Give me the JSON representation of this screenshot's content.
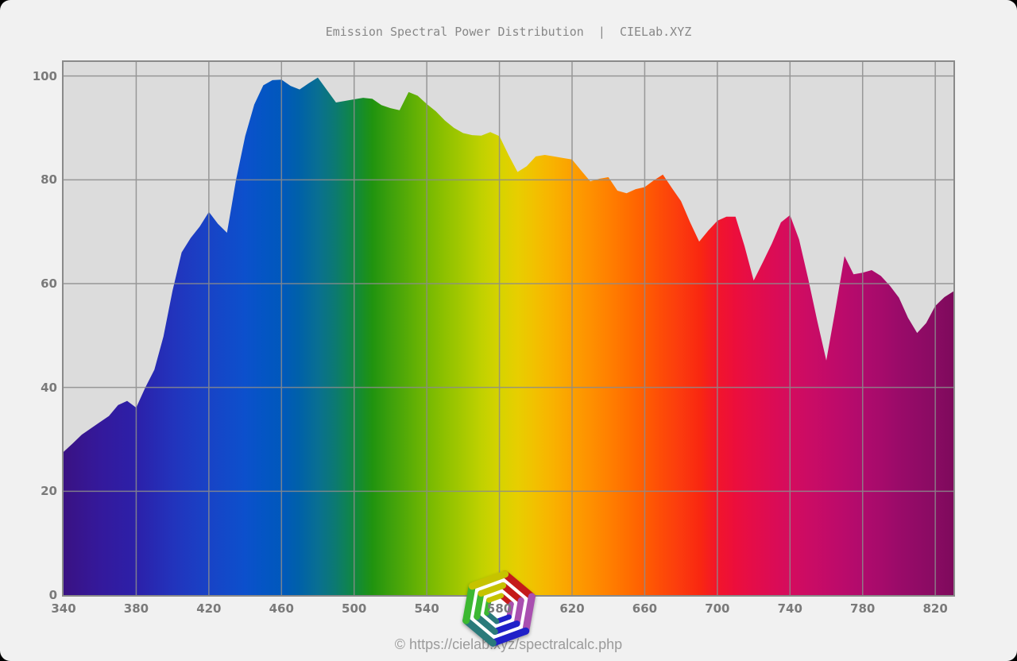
{
  "header": {
    "title": "Emission Spectral Power Distribution  |  CIELab.XYZ",
    "color": "#878787"
  },
  "footer": {
    "text": "© https://cielab.xyz/spectralcalc.php",
    "color": "#9b9b9b"
  },
  "window": {
    "background": "#f1f1f1",
    "corner_background": "#000000"
  },
  "chart_data": {
    "type": "area",
    "title": "Emission Spectral Power Distribution | CIELab.XYZ",
    "xlabel": "",
    "ylabel": "",
    "xlim": [
      340,
      830
    ],
    "ylim": [
      0,
      102.7
    ],
    "x_ticks": [
      340,
      380,
      420,
      460,
      500,
      540,
      580,
      620,
      660,
      700,
      740,
      780,
      820
    ],
    "y_ticks": [
      0,
      20,
      40,
      60,
      80,
      100
    ],
    "grid": true,
    "grid_color": "#8c8c8c",
    "plot_background": "#dcdcdc",
    "axis_border_color": "#8a8a8a",
    "tick_label_color": "#7a7a7a",
    "legend": "none",
    "series": [
      {
        "name": "emission-spectral-power-distribution",
        "x": [
          340,
          345,
          350,
          355,
          360,
          365,
          370,
          375,
          380,
          385,
          390,
          395,
          400,
          405,
          410,
          415,
          420,
          425,
          430,
          435,
          440,
          445,
          450,
          455,
          460,
          465,
          470,
          475,
          480,
          485,
          490,
          495,
          500,
          505,
          510,
          515,
          520,
          525,
          530,
          535,
          540,
          545,
          550,
          555,
          560,
          565,
          570,
          575,
          580,
          585,
          590,
          595,
          600,
          605,
          610,
          615,
          620,
          625,
          630,
          635,
          640,
          645,
          650,
          655,
          660,
          665,
          670,
          675,
          680,
          685,
          690,
          695,
          700,
          705,
          710,
          715,
          720,
          725,
          730,
          735,
          740,
          745,
          750,
          755,
          760,
          765,
          770,
          775,
          780,
          785,
          790,
          795,
          800,
          805,
          810,
          815,
          820,
          825,
          830
        ],
        "values": [
          27.6,
          29.2,
          30.9,
          32.1,
          33.3,
          34.5,
          36.6,
          37.4,
          36.1,
          40.0,
          43.4,
          49.8,
          58.6,
          66.0,
          68.8,
          71.0,
          73.8,
          71.5,
          69.8,
          80.0,
          88.4,
          94.5,
          98.2,
          99.2,
          99.3,
          98.1,
          97.4,
          98.6,
          99.7,
          97.3,
          94.9,
          95.2,
          95.5,
          95.8,
          95.6,
          94.4,
          93.8,
          93.4,
          96.9,
          96.2,
          94.6,
          93.2,
          91.4,
          90.0,
          89.0,
          88.6,
          88.5,
          89.2,
          88.4,
          84.8,
          81.5,
          82.6,
          84.5,
          84.8,
          84.5,
          84.2,
          83.9,
          81.8,
          79.7,
          80.2,
          80.5,
          77.9,
          77.4,
          78.2,
          78.6,
          79.9,
          81.0,
          78.4,
          75.9,
          71.8,
          68.1,
          70.2,
          72.1,
          72.9,
          72.9,
          67.2,
          60.6,
          64.1,
          67.7,
          71.8,
          73.2,
          68.5,
          61.0,
          52.8,
          45.2,
          55.0,
          65.3,
          61.8,
          62.1,
          62.6,
          61.5,
          59.6,
          57.3,
          53.4,
          50.5,
          52.4,
          55.7,
          57.4,
          58.5
        ]
      }
    ],
    "spectrum_gradient_stops": [
      [
        340,
        "#3A1283"
      ],
      [
        360,
        "#34199B"
      ],
      [
        380,
        "#2C20A9"
      ],
      [
        400,
        "#2233BC"
      ],
      [
        420,
        "#1843C6"
      ],
      [
        440,
        "#0C50CC"
      ],
      [
        450,
        "#0455C4"
      ],
      [
        460,
        "#0058BC"
      ],
      [
        470,
        "#0061A8"
      ],
      [
        480,
        "#096F92"
      ],
      [
        490,
        "#0C7A70"
      ],
      [
        500,
        "#108840"
      ],
      [
        510,
        "#20930F"
      ],
      [
        520,
        "#3DA00C"
      ],
      [
        530,
        "#58AC06"
      ],
      [
        540,
        "#74B802"
      ],
      [
        550,
        "#8EC100"
      ],
      [
        560,
        "#A6C900"
      ],
      [
        570,
        "#C0D100"
      ],
      [
        580,
        "#D6D300"
      ],
      [
        590,
        "#E7CE00"
      ],
      [
        600,
        "#F2C000"
      ],
      [
        610,
        "#F9B100"
      ],
      [
        620,
        "#FCA000"
      ],
      [
        630,
        "#FE9000"
      ],
      [
        640,
        "#FF8000"
      ],
      [
        650,
        "#FF6F00"
      ],
      [
        660,
        "#FF5D02"
      ],
      [
        670,
        "#FD4A08"
      ],
      [
        680,
        "#FB3A0E"
      ],
      [
        690,
        "#F92810"
      ],
      [
        700,
        "#F2152B"
      ],
      [
        710,
        "#EC0E3C"
      ],
      [
        720,
        "#E40D49"
      ],
      [
        730,
        "#DC0C54"
      ],
      [
        740,
        "#D40C5E"
      ],
      [
        750,
        "#CB0C64"
      ],
      [
        760,
        "#C30B68"
      ],
      [
        770,
        "#BA0B6B"
      ],
      [
        780,
        "#B00B6C"
      ],
      [
        790,
        "#A60B6B"
      ],
      [
        800,
        "#9A0B69"
      ],
      [
        810,
        "#910B66"
      ],
      [
        820,
        "#880B62"
      ],
      [
        830,
        "#7E0A5C"
      ]
    ]
  },
  "logo": {
    "name": "cielab-nested-hexagons-logo",
    "rotation_deg": 10,
    "inner_fill": "#FFFFFF",
    "rings": [
      {
        "radius": 44,
        "stroke_width": 9
      },
      {
        "radius": 29.5,
        "stroke_width": 8
      },
      {
        "radius": 16.5,
        "stroke_width": 6.5
      }
    ],
    "edge_color_names": [
      "red",
      "magenta",
      "blue",
      "teal",
      "green",
      "yellow"
    ],
    "edge_colors": [
      "#C41A1A",
      "#A94FB0",
      "#2020C8",
      "#2A7A7A",
      "#3CB830",
      "#C6C300"
    ]
  }
}
